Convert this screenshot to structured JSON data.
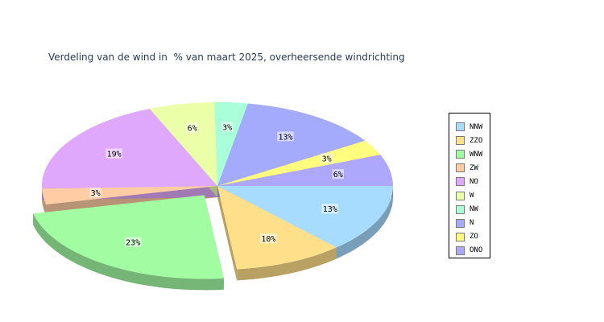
{
  "chart_data": {
    "type": "pie",
    "title": "Verdeling van de wind in  % van maart 2025, overheersende windrichting",
    "legend_position": "right",
    "slices": [
      {
        "label": "NNW",
        "value": 13,
        "display": "13%",
        "color": "#a8dcff",
        "exploded": false
      },
      {
        "label": "ZZO",
        "value": 10,
        "display": "10%",
        "color": "#ffe08a",
        "exploded": false
      },
      {
        "label": "WNW",
        "value": 23,
        "display": "23%",
        "color": "#a2fca2",
        "exploded": true
      },
      {
        "label": "ZW",
        "value": 3,
        "display": "3%",
        "color": "#ffcca4",
        "exploded": false
      },
      {
        "label": "NO",
        "value": 19,
        "display": "19%",
        "color": "#dfa8fc",
        "exploded": false
      },
      {
        "label": "W",
        "value": 6,
        "display": "6%",
        "color": "#eaffa8",
        "exploded": false
      },
      {
        "label": "NW",
        "value": 3,
        "display": "3%",
        "color": "#a8ffd8",
        "exploded": false
      },
      {
        "label": "N",
        "value": 13,
        "display": "13%",
        "color": "#a4aafc",
        "exploded": false
      },
      {
        "label": "ZO",
        "value": 3,
        "display": "3%",
        "color": "#fffc7e",
        "exploded": false
      },
      {
        "label": "ONO",
        "value": 6,
        "display": "6%",
        "color": "#aea8fc",
        "exploded": false
      }
    ]
  }
}
